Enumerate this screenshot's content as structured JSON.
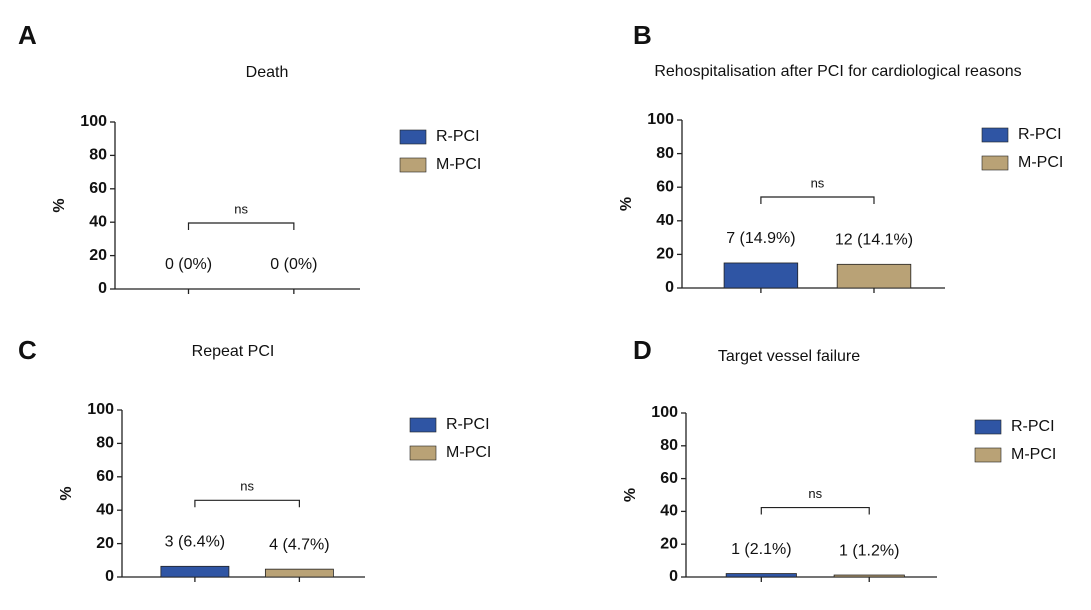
{
  "chart_data": [
    {
      "type": "bar",
      "panel": "A",
      "title": "Death",
      "ylabel": "%",
      "annotation": "ns",
      "series": [
        {
          "name": "R-PCI",
          "color": "#2f55a4",
          "values": [
            0
          ],
          "value_labels": [
            "0 (0%)"
          ]
        },
        {
          "name": "M-PCI",
          "color": "#b9a276",
          "values": [
            0
          ],
          "value_labels": [
            "0 (0%)"
          ]
        }
      ],
      "ylim": [
        0,
        100
      ],
      "yticks": [
        0,
        20,
        40,
        60,
        80,
        100
      ]
    },
    {
      "type": "bar",
      "panel": "B",
      "title": "Rehospitalisation after PCI for cardiological reasons",
      "ylabel": "%",
      "annotation": "ns",
      "series": [
        {
          "name": "R-PCI",
          "color": "#2f55a4",
          "values": [
            14.9
          ],
          "value_labels": [
            "7 (14.9%)"
          ]
        },
        {
          "name": "M-PCI",
          "color": "#b9a276",
          "values": [
            14.1
          ],
          "value_labels": [
            "12 (14.1%)"
          ]
        }
      ],
      "ylim": [
        0,
        100
      ],
      "yticks": [
        0,
        20,
        40,
        60,
        80,
        100
      ]
    },
    {
      "type": "bar",
      "panel": "C",
      "title": "Repeat PCI",
      "ylabel": "%",
      "annotation": "ns",
      "series": [
        {
          "name": "R-PCI",
          "color": "#2f55a4",
          "values": [
            6.4
          ],
          "value_labels": [
            "3 (6.4%)"
          ]
        },
        {
          "name": "M-PCI",
          "color": "#b9a276",
          "values": [
            4.7
          ],
          "value_labels": [
            "4 (4.7%)"
          ]
        }
      ],
      "ylim": [
        0,
        100
      ],
      "yticks": [
        0,
        20,
        40,
        60,
        80,
        100
      ]
    },
    {
      "type": "bar",
      "panel": "D",
      "title": "Target vessel failure",
      "ylabel": "%",
      "annotation": "ns",
      "series": [
        {
          "name": "R-PCI",
          "color": "#2f55a4",
          "values": [
            2.1
          ],
          "value_labels": [
            "1 (2.1%)"
          ]
        },
        {
          "name": "M-PCI",
          "color": "#b9a276",
          "values": [
            1.2
          ],
          "value_labels": [
            "1 (1.2%)"
          ]
        }
      ],
      "ylim": [
        0,
        100
      ],
      "yticks": [
        0,
        20,
        40,
        60,
        80,
        100
      ]
    }
  ]
}
